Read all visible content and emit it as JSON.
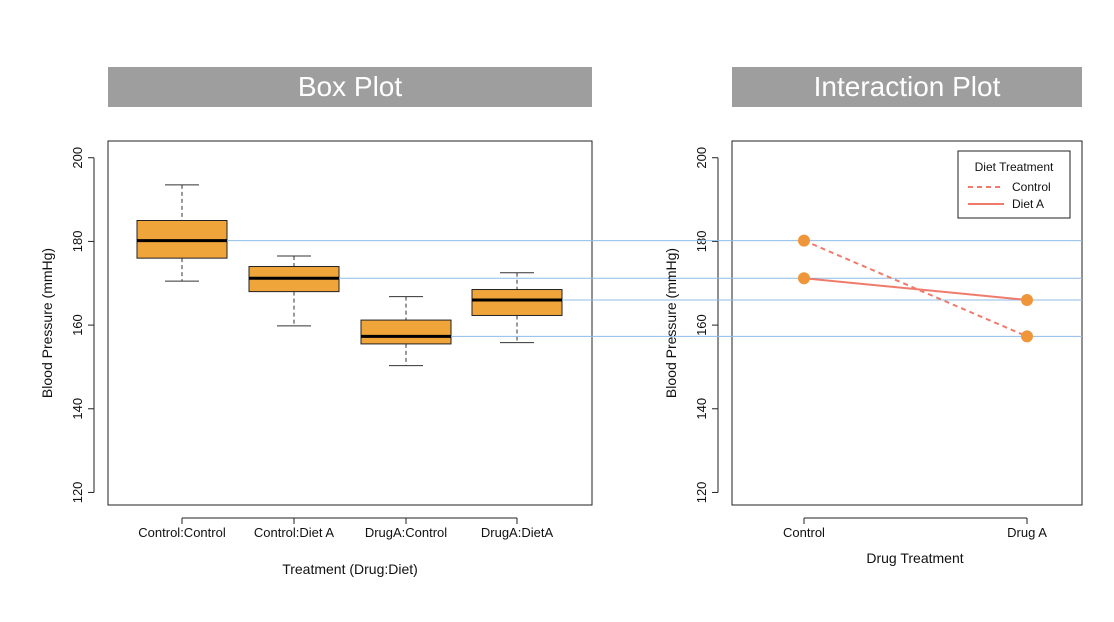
{
  "colors": {
    "box_fill": "#f0a53a",
    "line": "#f07b6b",
    "point": "#f0963a",
    "guide": "#8fbce6"
  },
  "chart_data": [
    {
      "type": "box",
      "title": "Box Plot",
      "xlabel": "Treatment (Drug:Diet)",
      "ylabel": "Blood Pressure (mmHg)",
      "ylim": [
        117,
        204
      ],
      "yticks": [
        "120",
        "140",
        "160",
        "180",
        "200"
      ],
      "categories": [
        "Control:Control",
        "Control:Diet A",
        "DrugA:Control",
        "DrugA:DietA"
      ],
      "boxes": [
        {
          "min": 170.5,
          "q1": 176.0,
          "median": 180.2,
          "q3": 185.0,
          "max": 193.5
        },
        {
          "min": 159.8,
          "q1": 168.0,
          "median": 171.2,
          "q3": 174.0,
          "max": 176.5
        },
        {
          "min": 150.3,
          "q1": 155.5,
          "median": 157.3,
          "q3": 161.2,
          "max": 166.8
        },
        {
          "min": 155.8,
          "q1": 162.3,
          "median": 166.0,
          "q3": 168.5,
          "max": 172.5
        }
      ]
    },
    {
      "type": "line",
      "title": "Interaction Plot",
      "xlabel": "Drug Treatment",
      "ylabel": "Blood Pressure (mmHg)",
      "ylim": [
        117,
        204
      ],
      "yticks": [
        "120",
        "140",
        "160",
        "180",
        "200"
      ],
      "categories": [
        "Control",
        "Drug A"
      ],
      "legend_title": "Diet Treatment",
      "legend_position": "top-right",
      "series": [
        {
          "name": "Control",
          "style": "dashed",
          "values": [
            180.2,
            157.3
          ]
        },
        {
          "name": "Diet A",
          "style": "solid",
          "values": [
            171.2,
            166.0
          ]
        }
      ]
    }
  ],
  "guide_lines": [
    180.2,
    171.2,
    166.0,
    157.3
  ]
}
